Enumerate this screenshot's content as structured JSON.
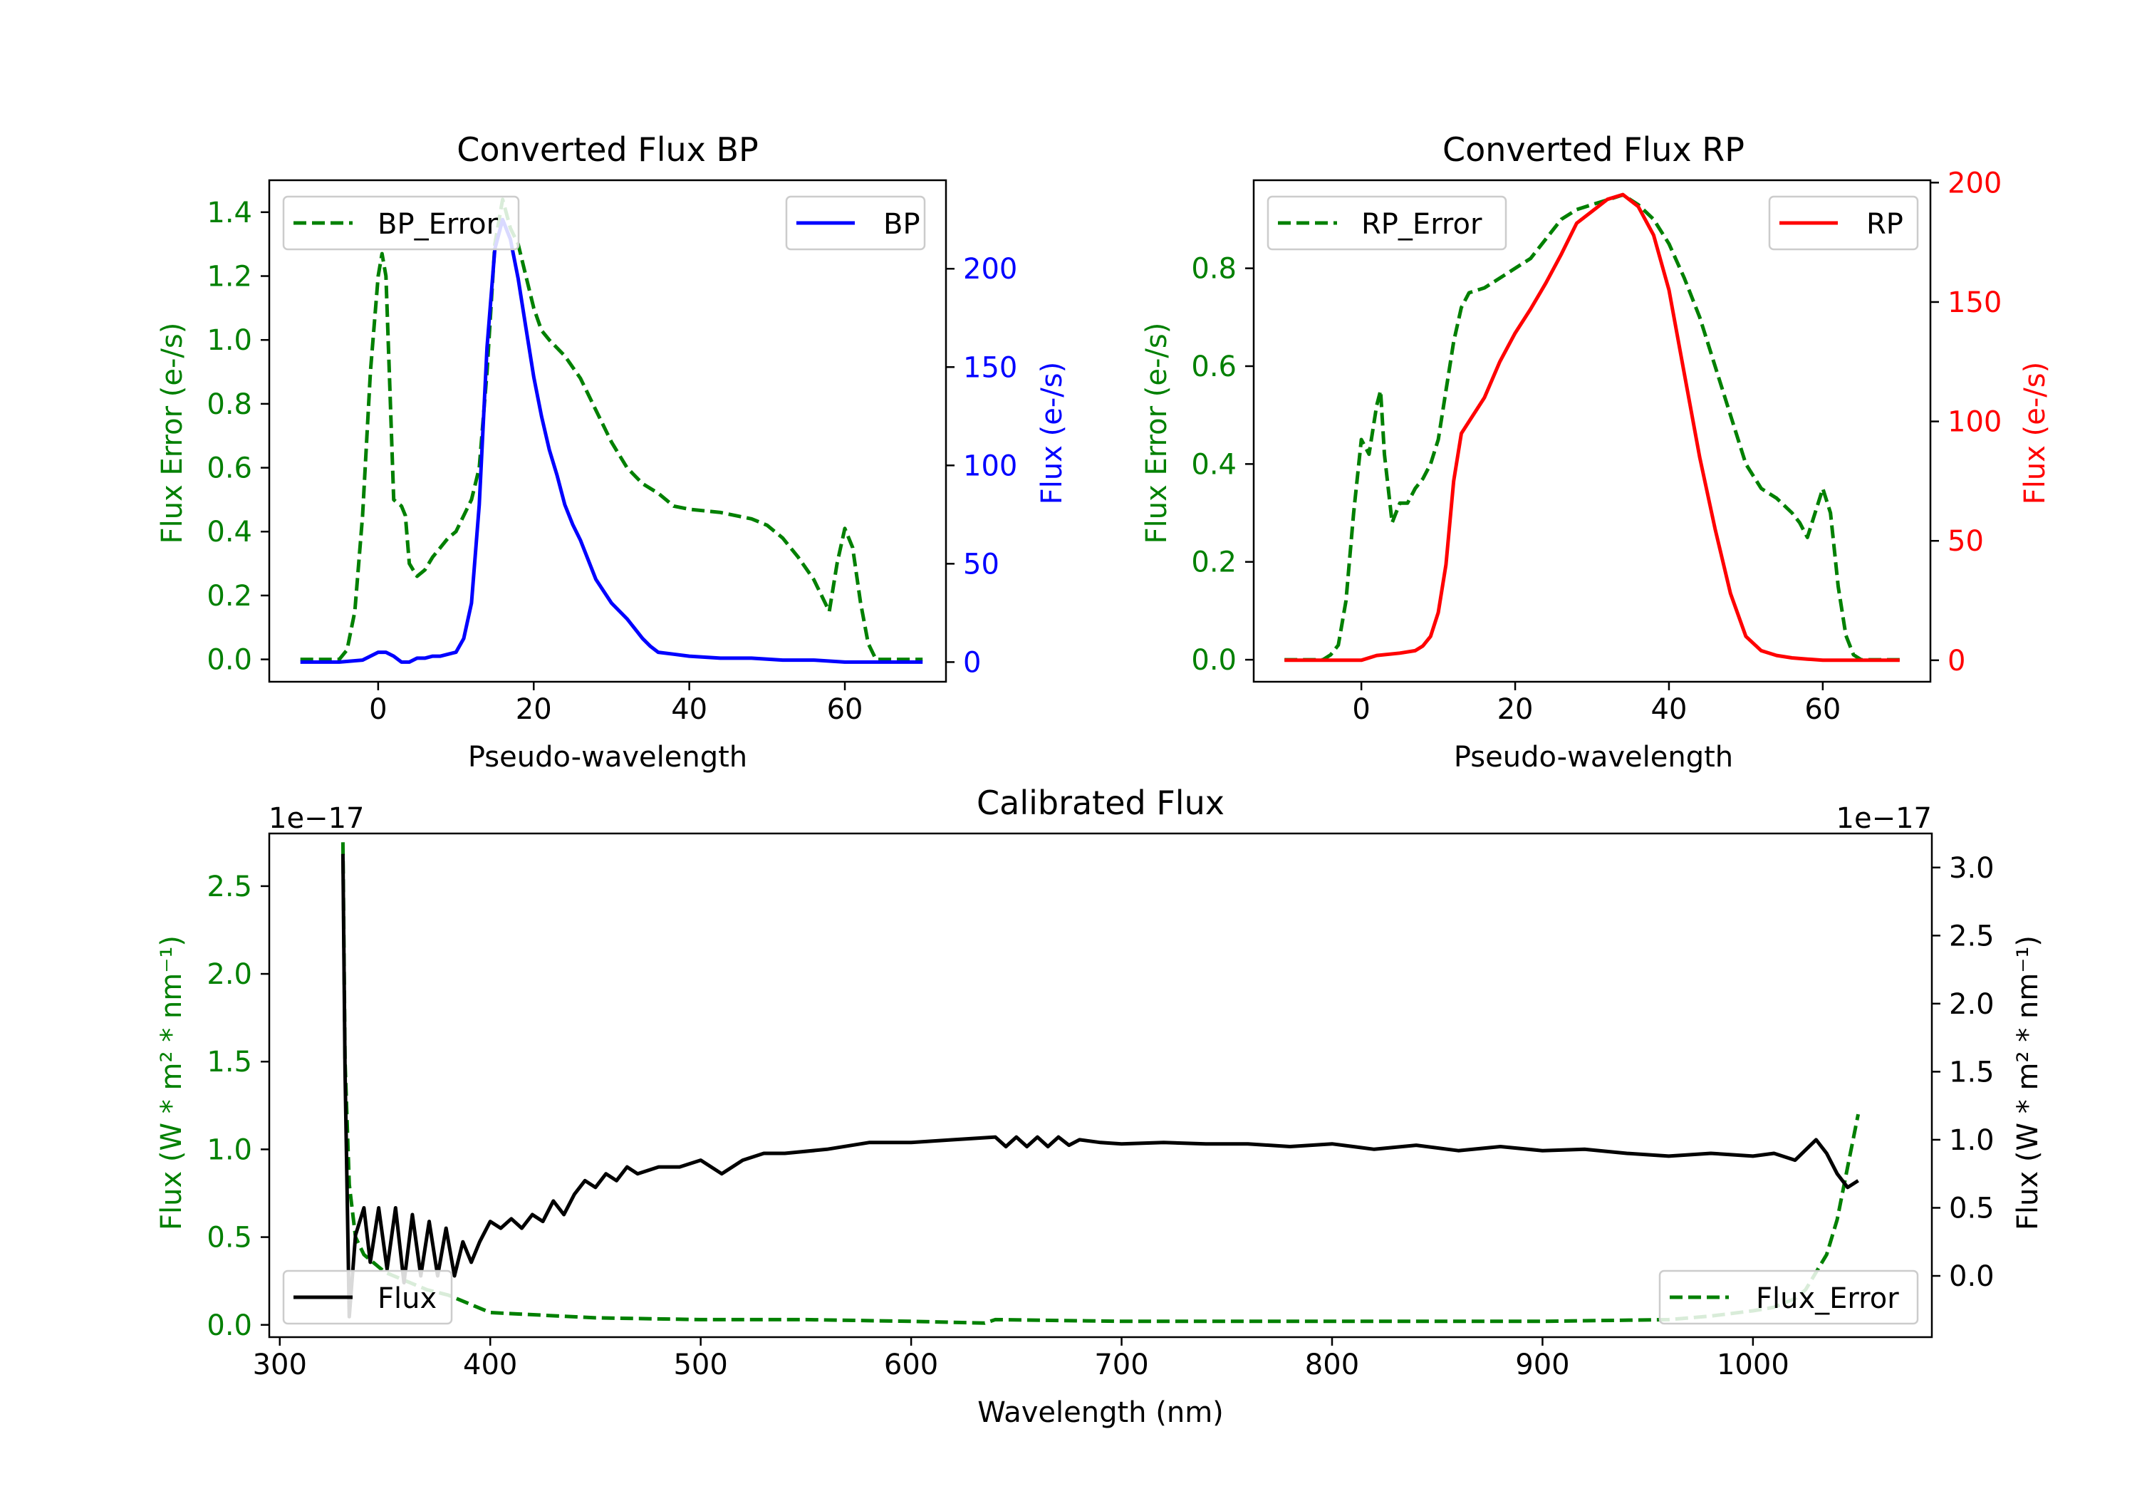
{
  "colors": {
    "green": "#008000",
    "blue": "#0000ff",
    "red": "#ff0000",
    "black": "#000000"
  },
  "chart_data": [
    {
      "type": "line",
      "title": "Converted Flux BP",
      "xlabel": "Pseudo-wavelength",
      "ylabel_left": "Flux Error (e-/s)",
      "ylabel_right": "Flux (e-/s)",
      "xlim": [
        -14,
        73
      ],
      "ylim_left": [
        -0.07,
        1.5
      ],
      "ylim_right": [
        -10,
        245
      ],
      "xticks": [
        0,
        20,
        40,
        60
      ],
      "xtick_labels": [
        "0",
        "20",
        "40",
        "60"
      ],
      "yticks_left": [
        0.0,
        0.2,
        0.4,
        0.6,
        0.8,
        1.0,
        1.2,
        1.4
      ],
      "ytick_labels_left": [
        "0.0",
        "0.2",
        "0.4",
        "0.6",
        "0.8",
        "1.0",
        "1.2",
        "1.4"
      ],
      "yticks_right": [
        0,
        50,
        100,
        150,
        200
      ],
      "ytick_labels_right": [
        "0",
        "50",
        "100",
        "150",
        "200"
      ],
      "left_color": "#008000",
      "right_color": "#0000ff",
      "legend_left": {
        "label": "BP_Error",
        "position": "upper-left"
      },
      "legend_right": {
        "label": "BP",
        "position": "upper-right"
      },
      "series": [
        {
          "name": "BP_Error",
          "axis": "left",
          "style": "dashed",
          "color": "#008000",
          "x": [
            -10,
            -5,
            -4,
            -3,
            -2,
            -1,
            0,
            0.5,
            1,
            1.5,
            2,
            3,
            3.5,
            4,
            5,
            6,
            7,
            8,
            9,
            10,
            11,
            12,
            13,
            14,
            15,
            16,
            17,
            18,
            19,
            20,
            21,
            22,
            24,
            26,
            28,
            30,
            32,
            34,
            36,
            38,
            40,
            44,
            48,
            50,
            52,
            54,
            56,
            57,
            58,
            59,
            60,
            61,
            62,
            63,
            64,
            66,
            70
          ],
          "y": [
            0.0,
            0.0,
            0.03,
            0.15,
            0.45,
            0.9,
            1.2,
            1.27,
            1.2,
            0.85,
            0.5,
            0.48,
            0.45,
            0.3,
            0.26,
            0.28,
            0.32,
            0.35,
            0.38,
            0.4,
            0.45,
            0.5,
            0.6,
            0.9,
            1.3,
            1.44,
            1.35,
            1.3,
            1.2,
            1.1,
            1.03,
            1.0,
            0.95,
            0.88,
            0.78,
            0.68,
            0.6,
            0.55,
            0.52,
            0.48,
            0.47,
            0.46,
            0.44,
            0.42,
            0.38,
            0.32,
            0.25,
            0.2,
            0.15,
            0.3,
            0.41,
            0.35,
            0.18,
            0.05,
            0.0,
            0.0,
            0.0
          ]
        },
        {
          "name": "BP",
          "axis": "right",
          "style": "solid",
          "color": "#0000ff",
          "x": [
            -10,
            -5,
            -2,
            0,
            1,
            2,
            3,
            4,
            5,
            6,
            7,
            8,
            9,
            10,
            11,
            12,
            13,
            14,
            15,
            16,
            17,
            18,
            19,
            20,
            21,
            22,
            23,
            24,
            25,
            26,
            27,
            28,
            30,
            32,
            34,
            35,
            36,
            38,
            40,
            44,
            48,
            52,
            56,
            60,
            64,
            68,
            70
          ],
          "y": [
            0,
            0,
            1,
            5,
            5,
            3,
            0,
            0,
            2,
            2,
            3,
            3,
            4,
            5,
            12,
            30,
            80,
            160,
            210,
            225,
            215,
            195,
            170,
            145,
            125,
            108,
            95,
            80,
            70,
            62,
            52,
            42,
            30,
            22,
            12,
            8,
            5,
            4,
            3,
            2,
            2,
            1,
            1,
            0,
            0,
            0,
            0
          ]
        }
      ]
    },
    {
      "type": "line",
      "title": "Converted Flux RP",
      "xlabel": "Pseudo-wavelength",
      "ylabel_left": "Flux Error (e-/s)",
      "ylabel_right": "Flux (e-/s)",
      "xlim": [
        -14,
        74
      ],
      "ylim_left": [
        -0.045,
        0.98
      ],
      "ylim_right": [
        -9,
        201
      ],
      "xticks": [
        0,
        20,
        40,
        60
      ],
      "xtick_labels": [
        "0",
        "20",
        "40",
        "60"
      ],
      "yticks_left": [
        0.0,
        0.2,
        0.4,
        0.6,
        0.8
      ],
      "ytick_labels_left": [
        "0.0",
        "0.2",
        "0.4",
        "0.6",
        "0.8"
      ],
      "yticks_right": [
        0,
        50,
        100,
        150,
        200
      ],
      "ytick_labels_right": [
        "0",
        "50",
        "100",
        "150",
        "200"
      ],
      "left_color": "#008000",
      "right_color": "#ff0000",
      "legend_left": {
        "label": "RP_Error",
        "position": "upper-left"
      },
      "legend_right": {
        "label": "RP",
        "position": "upper-right"
      },
      "series": [
        {
          "name": "RP_Error",
          "axis": "left",
          "style": "dashed",
          "color": "#008000",
          "x": [
            -10,
            -5,
            -4,
            -3,
            -2,
            -1,
            0,
            1,
            2,
            2.5,
            3,
            4,
            5,
            6,
            7,
            8,
            9,
            10,
            11,
            12,
            13,
            14,
            16,
            18,
            20,
            22,
            24,
            26,
            28,
            30,
            32,
            34,
            36,
            38,
            40,
            42,
            44,
            46,
            48,
            50,
            52,
            54,
            56,
            57,
            58,
            59,
            60,
            61,
            62,
            63,
            64,
            65,
            70
          ],
          "y": [
            0.0,
            0.0,
            0.01,
            0.03,
            0.12,
            0.3,
            0.45,
            0.42,
            0.52,
            0.55,
            0.42,
            0.28,
            0.32,
            0.32,
            0.35,
            0.37,
            0.4,
            0.45,
            0.55,
            0.65,
            0.72,
            0.75,
            0.76,
            0.78,
            0.8,
            0.82,
            0.86,
            0.9,
            0.92,
            0.93,
            0.94,
            0.95,
            0.93,
            0.9,
            0.85,
            0.78,
            0.7,
            0.6,
            0.5,
            0.4,
            0.35,
            0.33,
            0.3,
            0.28,
            0.25,
            0.3,
            0.35,
            0.3,
            0.15,
            0.05,
            0.01,
            0.0,
            0.0
          ]
        },
        {
          "name": "RP",
          "axis": "right",
          "style": "solid",
          "color": "#ff0000",
          "x": [
            -10,
            -5,
            0,
            2,
            5,
            7,
            8,
            9,
            10,
            11,
            12,
            13,
            14,
            16,
            18,
            20,
            22,
            24,
            26,
            28,
            30,
            32,
            34,
            36,
            38,
            40,
            42,
            44,
            46,
            48,
            50,
            52,
            54,
            56,
            58,
            60,
            62,
            66,
            70
          ],
          "y": [
            0,
            0,
            0,
            2,
            3,
            4,
            6,
            10,
            20,
            40,
            75,
            95,
            100,
            110,
            125,
            137,
            147,
            158,
            170,
            183,
            188,
            193,
            195,
            190,
            178,
            155,
            120,
            85,
            55,
            28,
            10,
            4,
            2,
            1,
            0.5,
            0,
            0,
            0,
            0
          ]
        }
      ]
    },
    {
      "type": "line",
      "title": "Calibrated Flux",
      "xlabel": "Wavelength (nm)",
      "ylabel_left": "Flux (W * m² * nm⁻¹)",
      "ylabel_right": "Flux (W * m² * nm⁻¹)",
      "offset_left": "1e−17",
      "offset_right": "1e−17",
      "xlim": [
        295,
        1085
      ],
      "ylim_left": [
        -0.07,
        2.8
      ],
      "ylim_right": [
        -0.45,
        3.25
      ],
      "xticks": [
        300,
        400,
        500,
        600,
        700,
        800,
        900,
        1000
      ],
      "xtick_labels": [
        "300",
        "400",
        "500",
        "600",
        "700",
        "800",
        "900",
        "1000"
      ],
      "yticks_left": [
        0.0,
        0.5,
        1.0,
        1.5,
        2.0,
        2.5
      ],
      "ytick_labels_left": [
        "0.0",
        "0.5",
        "1.0",
        "1.5",
        "2.0",
        "2.5"
      ],
      "yticks_right": [
        0.0,
        0.5,
        1.0,
        1.5,
        2.0,
        2.5,
        3.0
      ],
      "ytick_labels_right": [
        "0.0",
        "0.5",
        "1.0",
        "1.5",
        "2.0",
        "2.5",
        "3.0"
      ],
      "left_color": "#008000",
      "right_color": "#000000",
      "legend_left": {
        "label": "Flux",
        "position": "lower-left"
      },
      "legend_right": {
        "label": "Flux_Error",
        "position": "lower-right"
      },
      "series": [
        {
          "name": "Flux_Error",
          "axis": "left",
          "style": "dashed",
          "color": "#008000",
          "x": [
            330,
            331,
            333,
            336,
            340,
            350,
            360,
            370,
            380,
            390,
            400,
            450,
            500,
            550,
            600,
            635,
            640,
            700,
            800,
            900,
            960,
            980,
            1000,
            1010,
            1020,
            1025,
            1030,
            1035,
            1040,
            1045,
            1050
          ],
          "y": [
            2.75,
            1.5,
            0.8,
            0.5,
            0.4,
            0.3,
            0.25,
            0.2,
            0.17,
            0.12,
            0.07,
            0.04,
            0.03,
            0.03,
            0.02,
            0.01,
            0.03,
            0.02,
            0.02,
            0.02,
            0.03,
            0.05,
            0.08,
            0.1,
            0.15,
            0.2,
            0.3,
            0.4,
            0.6,
            0.9,
            1.2
          ]
        },
        {
          "name": "Flux",
          "axis": "right",
          "style": "solid",
          "color": "#000000",
          "x": [
            330,
            331,
            333,
            336,
            340,
            343,
            347,
            351,
            355,
            359,
            363,
            367,
            371,
            375,
            379,
            383,
            387,
            391,
            395,
            400,
            405,
            410,
            415,
            420,
            425,
            430,
            435,
            440,
            445,
            450,
            455,
            460,
            465,
            470,
            480,
            490,
            500,
            510,
            520,
            530,
            540,
            560,
            580,
            600,
            620,
            640,
            645,
            650,
            655,
            660,
            665,
            670,
            675,
            680,
            690,
            700,
            720,
            740,
            760,
            780,
            800,
            820,
            840,
            860,
            880,
            900,
            920,
            940,
            960,
            980,
            1000,
            1010,
            1020,
            1030,
            1035,
            1040,
            1045,
            1050
          ],
          "y": [
            3.1,
            1.5,
            -0.3,
            0.3,
            0.5,
            0.1,
            0.5,
            0.05,
            0.5,
            -0.05,
            0.45,
            0.0,
            0.4,
            0.0,
            0.35,
            0.0,
            0.25,
            0.1,
            0.25,
            0.4,
            0.35,
            0.42,
            0.35,
            0.45,
            0.4,
            0.55,
            0.45,
            0.6,
            0.7,
            0.65,
            0.75,
            0.7,
            0.8,
            0.75,
            0.8,
            0.8,
            0.85,
            0.75,
            0.85,
            0.9,
            0.9,
            0.93,
            0.98,
            0.98,
            1.0,
            1.02,
            0.95,
            1.02,
            0.95,
            1.02,
            0.95,
            1.02,
            0.96,
            1.0,
            0.98,
            0.97,
            0.98,
            0.97,
            0.97,
            0.95,
            0.97,
            0.93,
            0.96,
            0.92,
            0.95,
            0.92,
            0.93,
            0.9,
            0.88,
            0.9,
            0.88,
            0.9,
            0.85,
            1.0,
            0.9,
            0.75,
            0.65,
            0.7
          ]
        }
      ]
    }
  ]
}
